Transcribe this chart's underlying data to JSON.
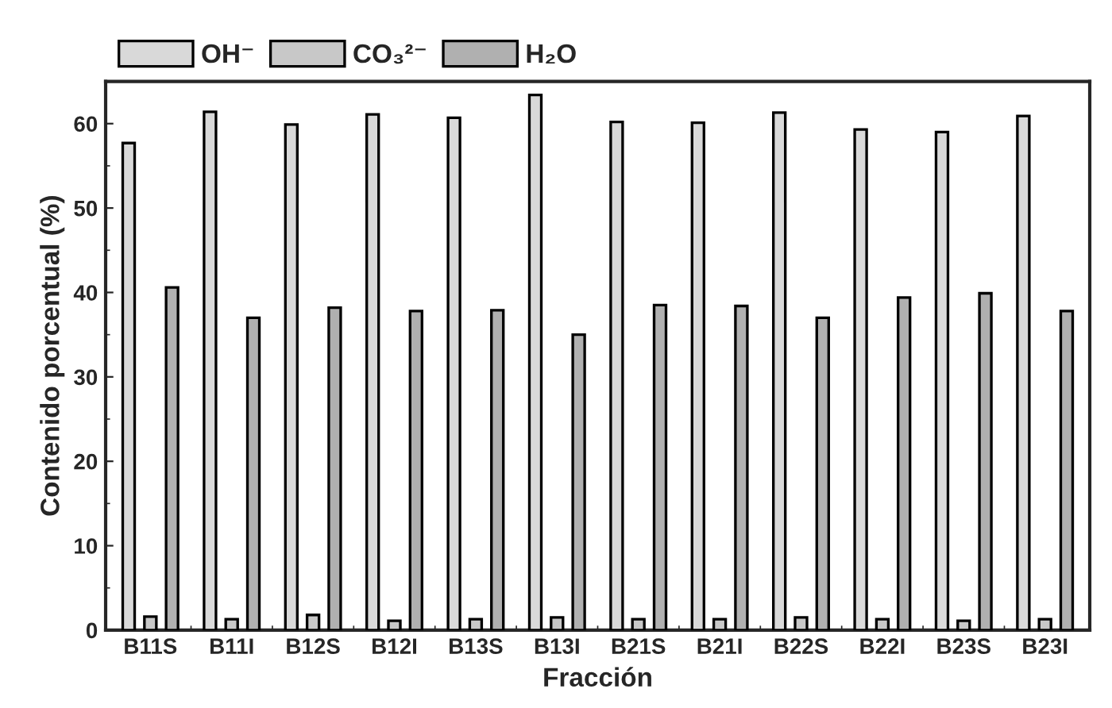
{
  "chart_data": {
    "type": "bar",
    "xlabel": "Fracción",
    "ylabel": "Contenido porcentual (%)",
    "categories": [
      "B11S",
      "B11I",
      "B12S",
      "B12I",
      "B13S",
      "B13I",
      "B21S",
      "B21I",
      "B22S",
      "B22I",
      "B23S",
      "B23I"
    ],
    "series": [
      {
        "name": "OH⁻",
        "color": "#d9d9d9",
        "values": [
          57.7,
          61.4,
          59.9,
          61.1,
          60.7,
          63.4,
          60.2,
          60.1,
          61.3,
          59.3,
          59.0,
          60.9
        ]
      },
      {
        "name": "CO₃²⁻",
        "color": "#c8c8c8",
        "values": [
          1.6,
          1.3,
          1.8,
          1.1,
          1.3,
          1.5,
          1.3,
          1.3,
          1.5,
          1.3,
          1.1,
          1.3
        ]
      },
      {
        "name": "H₂O",
        "color": "#b0b0b0",
        "values": [
          40.6,
          37.0,
          38.2,
          37.8,
          37.9,
          35.0,
          38.5,
          38.4,
          37.0,
          39.4,
          39.9,
          37.8
        ]
      }
    ],
    "ylim": [
      0,
      65
    ],
    "yticks": [
      0,
      10,
      20,
      30,
      40,
      50,
      60
    ],
    "grid": false,
    "legend": "top left"
  }
}
